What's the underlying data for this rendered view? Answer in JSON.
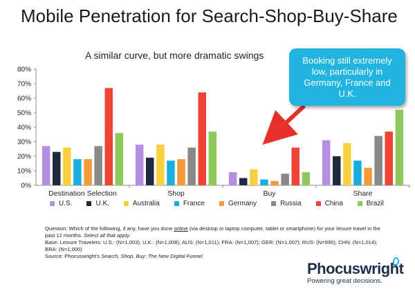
{
  "header": {
    "title": "Mobile Penetration for Search-Shop-Buy-Share"
  },
  "callout": {
    "text": "Booking still extremely low, particularly in Germany, France and U.K."
  },
  "footnote": {
    "q_pre": "Question: Which of the following, if any, have you done ",
    "q_online": "online",
    "q_post": " (via desktop or laptop computer, tablet or smartphone) for your leisure travel in the past 12 months. ",
    "q_select": "Select all that apply.",
    "base1": "Base: Leisure Travelers: U.S.: (N=1,003); U.K.: (N=1,008); AUS: (N=1,011); FRA: (N=1,007); GER: (N=1,007); RUS: (N=995); CHN: (N=1,014);",
    "base2": "BRA: (N=1,000)",
    "source_pre": "Source: Phocuswright's ",
    "source_title": "Search, Shop, Buy: The New Digital Funnel"
  },
  "logo": {
    "name": "Phocuswright",
    "tagline": "Powering great decisions."
  },
  "chart_data": {
    "type": "bar",
    "title": "A similar curve, but more dramatic swings",
    "xlabel": "",
    "ylabel": "",
    "ylim": [
      0,
      80
    ],
    "yticks": [
      "0%",
      "10%",
      "20%",
      "30%",
      "40%",
      "50%",
      "60%",
      "70%",
      "80%"
    ],
    "grid": false,
    "legend_position": "bottom",
    "categories": [
      "Destination Selection",
      "Shop",
      "Buy",
      "Share"
    ],
    "series": [
      {
        "name": "U.S.",
        "color": "#b48ee0",
        "values": [
          27,
          28,
          9,
          31
        ]
      },
      {
        "name": "U.K.",
        "color": "#1f2a3c",
        "values": [
          23,
          19,
          5,
          20
        ]
      },
      {
        "name": "Australia",
        "color": "#f9d040",
        "values": [
          26,
          28,
          11,
          29
        ]
      },
      {
        "name": "France",
        "color": "#1aaedc",
        "values": [
          18,
          17,
          4,
          17
        ]
      },
      {
        "name": "Germany",
        "color": "#f29b38",
        "values": [
          18,
          18,
          3,
          12
        ]
      },
      {
        "name": "Russia",
        "color": "#898989",
        "values": [
          27,
          26,
          8,
          34
        ]
      },
      {
        "name": "China",
        "color": "#ee4434",
        "values": [
          67,
          64,
          26,
          37
        ]
      },
      {
        "name": "Brazil",
        "color": "#8dc95c",
        "values": [
          36,
          37,
          9,
          52
        ]
      }
    ]
  }
}
